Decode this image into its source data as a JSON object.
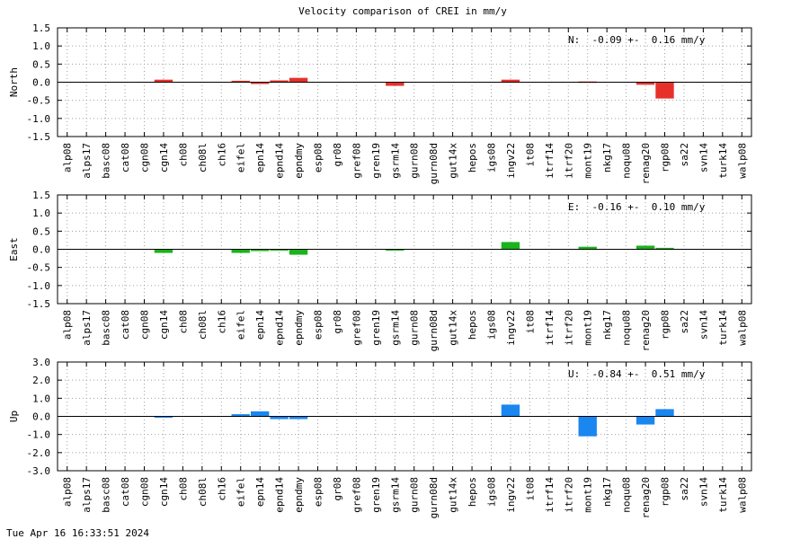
{
  "title": "Velocity comparison of CREI in mm/y",
  "timestamp": "Tue Apr 16 16:33:51 2024",
  "chart_data": [
    {
      "type": "bar",
      "ylabel": "North",
      "color": "#e8302a",
      "ylim": [
        -1.5,
        1.5
      ],
      "yticks": [
        "-1.5",
        "-1.0",
        "-0.5",
        "0.0",
        "0.5",
        "1.0",
        "1.5"
      ],
      "ytick_values": [
        -1.5,
        -1.0,
        -0.5,
        0.0,
        0.5,
        1.0,
        1.5
      ],
      "annotation": "N:  -0.09 +-  0.16 mm/y",
      "grid": true,
      "categories": [
        "alp08",
        "alps17",
        "basc08",
        "cat08",
        "cgn08",
        "cgn14",
        "ch08",
        "ch08l",
        "ch16",
        "eifel",
        "epn14",
        "epnd14",
        "epndmy",
        "esp08",
        "gr08",
        "gref08",
        "gren19",
        "gsrm14",
        "gurn08",
        "gurn08d",
        "gut14x",
        "hepos",
        "igs08",
        "ingv22",
        "it08",
        "itrf14",
        "itrf20",
        "mont19",
        "nkg17",
        "noqu08",
        "renag20",
        "rgp08",
        "sa22",
        "svn14",
        "turk14",
        "walp08"
      ],
      "values": [
        null,
        null,
        null,
        null,
        null,
        0.07,
        null,
        null,
        null,
        0.04,
        -0.05,
        0.05,
        0.12,
        null,
        null,
        null,
        null,
        -0.1,
        null,
        null,
        null,
        null,
        null,
        0.07,
        null,
        null,
        null,
        0.02,
        null,
        null,
        -0.07,
        -0.45,
        null,
        null,
        null,
        null
      ]
    },
    {
      "type": "bar",
      "ylabel": "East",
      "color": "#19b31a",
      "ylim": [
        -1.5,
        1.5
      ],
      "yticks": [
        "-1.5",
        "-1.0",
        "-0.5",
        "0.0",
        "0.5",
        "1.0",
        "1.5"
      ],
      "ytick_values": [
        -1.5,
        -1.0,
        -0.5,
        0.0,
        0.5,
        1.0,
        1.5
      ],
      "annotation": "E:  -0.16 +-  0.10 mm/y",
      "grid": true,
      "categories": [
        "alp08",
        "alps17",
        "basc08",
        "cat08",
        "cgn08",
        "cgn14",
        "ch08",
        "ch08l",
        "ch16",
        "eifel",
        "epn14",
        "epnd14",
        "epndmy",
        "esp08",
        "gr08",
        "gref08",
        "gren19",
        "gsrm14",
        "gurn08",
        "gurn08d",
        "gut14x",
        "hepos",
        "igs08",
        "ingv22",
        "it08",
        "itrf14",
        "itrf20",
        "mont19",
        "nkg17",
        "noqu08",
        "renag20",
        "rgp08",
        "sa22",
        "svn14",
        "turk14",
        "walp08"
      ],
      "values": [
        null,
        null,
        null,
        null,
        null,
        -0.1,
        null,
        null,
        null,
        -0.1,
        -0.05,
        -0.02,
        -0.15,
        null,
        null,
        null,
        null,
        -0.02,
        null,
        null,
        null,
        null,
        null,
        0.2,
        null,
        null,
        null,
        0.07,
        null,
        null,
        0.1,
        0.04,
        null,
        null,
        null,
        null
      ]
    },
    {
      "type": "bar",
      "ylabel": "Up",
      "color": "#1a86f0",
      "ylim": [
        -3.0,
        3.0
      ],
      "yticks": [
        "-3.0",
        "-2.0",
        "-1.0",
        "0.0",
        "1.0",
        "2.0",
        "3.0"
      ],
      "ytick_values": [
        -3.0,
        -2.0,
        -1.0,
        0.0,
        1.0,
        2.0,
        3.0
      ],
      "annotation": "U:  -0.84 +-  0.51 mm/y",
      "grid": true,
      "categories": [
        "alp08",
        "alps17",
        "basc08",
        "cat08",
        "cgn08",
        "cgn14",
        "ch08",
        "ch08l",
        "ch16",
        "eifel",
        "epn14",
        "epnd14",
        "epndmy",
        "esp08",
        "gr08",
        "gref08",
        "gren19",
        "gsrm14",
        "gurn08",
        "gurn08d",
        "gut14x",
        "hepos",
        "igs08",
        "ingv22",
        "it08",
        "itrf14",
        "itrf20",
        "mont19",
        "nkg17",
        "noqu08",
        "renag20",
        "rgp08",
        "sa22",
        "svn14",
        "turk14",
        "walp08"
      ],
      "values": [
        null,
        null,
        null,
        null,
        null,
        -0.05,
        null,
        null,
        null,
        0.12,
        0.28,
        -0.15,
        -0.15,
        null,
        null,
        null,
        null,
        null,
        null,
        null,
        null,
        null,
        null,
        0.65,
        null,
        null,
        null,
        -1.1,
        null,
        null,
        -0.45,
        0.4,
        null,
        null,
        null,
        null
      ]
    }
  ]
}
